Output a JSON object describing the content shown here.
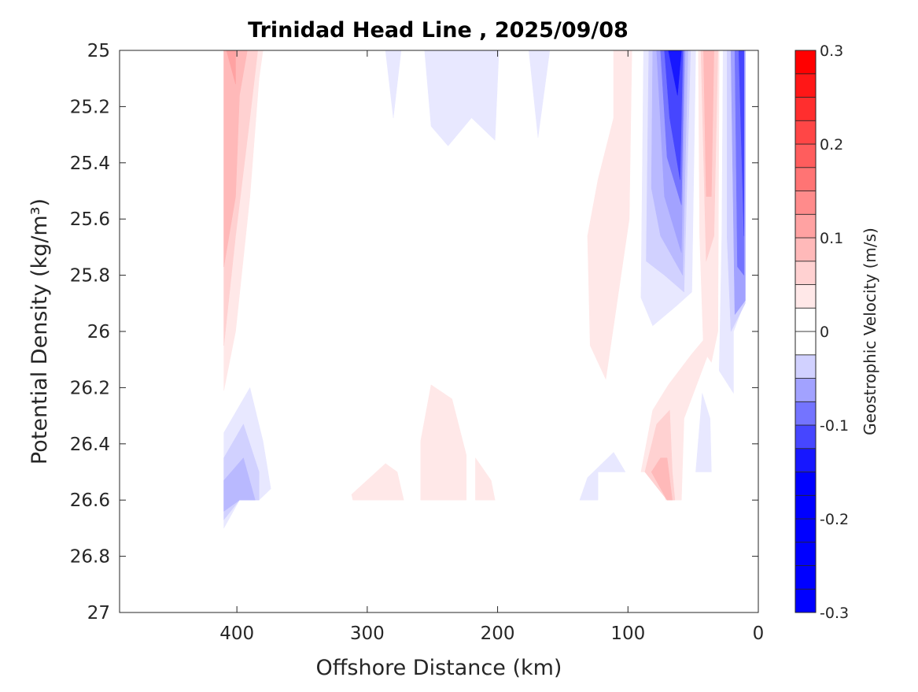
{
  "chart_data": {
    "type": "contourf",
    "title": "Trinidad Head Line , 2025/09/08",
    "xlabel": "Offshore Distance (km)",
    "ylabel": "Potential Density (kg/m³)",
    "xlim": [
      490,
      0
    ],
    "ylim": [
      27,
      25
    ],
    "xticks": [
      400,
      300,
      200,
      100,
      0
    ],
    "yticks": [
      25,
      25.2,
      25.4,
      25.6,
      25.8,
      26,
      26.2,
      26.4,
      26.6,
      26.8,
      27
    ],
    "ytick_labels": [
      "25",
      "25.2",
      "25.4",
      "25.6",
      "25.8",
      "26",
      "26.2",
      "26.4",
      "26.6",
      "26.8",
      "27"
    ],
    "colorbar": {
      "label": "Geostrophic Velocity (m/s)",
      "range": [
        -0.3,
        0.3
      ],
      "level_step": 0.025,
      "ticks": [
        0.3,
        0.2,
        0.1,
        0,
        -0.1,
        -0.2,
        -0.3
      ],
      "tick_labels": [
        "0.3",
        "0.2",
        "0.1",
        "0",
        "-0.1",
        "-0.2",
        "-0.3"
      ],
      "positive_color": "#ff0000",
      "negative_color": "#0000ff",
      "zero_color": "#ffffff"
    },
    "regions": [
      {
        "name": "red-400km-l1",
        "v": 0.025,
        "pts": [
          [
            410,
            25
          ],
          [
            380,
            25
          ],
          [
            383,
            25.1
          ],
          [
            390,
            25.52
          ],
          [
            401,
            26.0
          ],
          [
            410,
            26.21
          ]
        ]
      },
      {
        "name": "red-400km-l2",
        "v": 0.05,
        "pts": [
          [
            410,
            25
          ],
          [
            384,
            25
          ],
          [
            390,
            25.24
          ],
          [
            401,
            25.66
          ],
          [
            410,
            26.05
          ]
        ]
      },
      {
        "name": "red-400km-l3",
        "v": 0.075,
        "pts": [
          [
            410,
            25
          ],
          [
            392,
            25
          ],
          [
            398,
            25.16
          ],
          [
            401,
            25.52
          ],
          [
            410,
            25.77
          ]
        ]
      },
      {
        "name": "red-400km-l4",
        "v": 0.1,
        "pts": [
          [
            408,
            25
          ],
          [
            401,
            25
          ],
          [
            401,
            25.12
          ]
        ]
      },
      {
        "name": "blue-400km-l1",
        "v": -0.025,
        "pts": [
          [
            410,
            26.36
          ],
          [
            390,
            26.2
          ],
          [
            380,
            26.39
          ],
          [
            374,
            26.56
          ],
          [
            383,
            26.6
          ],
          [
            398,
            26.6
          ],
          [
            410,
            26.7
          ]
        ]
      },
      {
        "name": "blue-400km-l2",
        "v": -0.05,
        "pts": [
          [
            410,
            26.45
          ],
          [
            395,
            26.33
          ],
          [
            383,
            26.5
          ],
          [
            383,
            26.6
          ],
          [
            398,
            26.6
          ],
          [
            410,
            26.67
          ]
        ]
      },
      {
        "name": "blue-400km-l3",
        "v": -0.075,
        "pts": [
          [
            410,
            26.53
          ],
          [
            395,
            26.45
          ],
          [
            386,
            26.6
          ],
          [
            398,
            26.6
          ],
          [
            410,
            26.64
          ]
        ]
      },
      {
        "name": "blue-280km-l1",
        "v": -0.025,
        "pts": [
          [
            286,
            25
          ],
          [
            274,
            25
          ],
          [
            280,
            25.24
          ]
        ]
      },
      {
        "name": "blue-230km-l1",
        "v": -0.025,
        "pts": [
          [
            256,
            25
          ],
          [
            199,
            25
          ],
          [
            202,
            25.32
          ],
          [
            220,
            25.24
          ],
          [
            238,
            25.34
          ],
          [
            251,
            25.27
          ]
        ]
      },
      {
        "name": "blue-170km-l1",
        "v": -0.025,
        "pts": [
          [
            176,
            25
          ],
          [
            160,
            25
          ],
          [
            169,
            25.31
          ]
        ]
      },
      {
        "name": "red-110km-l1",
        "v": 0.025,
        "pts": [
          [
            111,
            25
          ],
          [
            97,
            25
          ],
          [
            99,
            25.6
          ],
          [
            117,
            26.17
          ],
          [
            129,
            26.05
          ],
          [
            131,
            25.66
          ],
          [
            123,
            25.46
          ],
          [
            111,
            25.24
          ]
        ]
      },
      {
        "name": "red-250km-l1",
        "v": 0.025,
        "pts": [
          [
            259,
            26.39
          ],
          [
            251,
            26.19
          ],
          [
            235,
            26.24
          ],
          [
            224,
            26.44
          ],
          [
            224,
            26.6
          ],
          [
            259,
            26.6
          ]
        ]
      },
      {
        "name": "red-210km-l1",
        "v": 0.025,
        "pts": [
          [
            217,
            26.45
          ],
          [
            205,
            26.53
          ],
          [
            202,
            26.6
          ],
          [
            217,
            26.6
          ]
        ]
      },
      {
        "name": "red-290km-l1",
        "v": 0.025,
        "pts": [
          [
            312,
            26.58
          ],
          [
            286,
            26.47
          ],
          [
            277,
            26.5
          ],
          [
            272,
            26.6
          ],
          [
            311,
            26.6
          ]
        ]
      },
      {
        "name": "blue-130km-l1",
        "v": -0.025,
        "pts": [
          [
            137,
            26.6
          ],
          [
            131,
            26.52
          ],
          [
            111,
            26.43
          ],
          [
            102,
            26.5
          ],
          [
            123,
            26.5
          ],
          [
            123,
            26.6
          ]
        ]
      },
      {
        "name": "blue-70km-l1",
        "v": -0.025,
        "pts": [
          [
            88,
            25
          ],
          [
            48,
            25
          ],
          [
            51,
            25.86
          ],
          [
            63,
            25.91
          ],
          [
            81,
            25.98
          ],
          [
            90,
            25.88
          ]
        ]
      },
      {
        "name": "blue-70km-l2",
        "v": -0.05,
        "pts": [
          [
            84,
            25
          ],
          [
            52,
            25
          ],
          [
            57,
            25.86
          ],
          [
            72,
            25.8
          ],
          [
            86,
            25.75
          ]
        ]
      },
      {
        "name": "blue-70km-l3",
        "v": -0.075,
        "pts": [
          [
            81,
            25
          ],
          [
            54,
            25
          ],
          [
            58,
            25.8
          ],
          [
            75,
            25.66
          ],
          [
            82,
            25.49
          ]
        ]
      },
      {
        "name": "blue-70km-l4",
        "v": -0.1,
        "pts": [
          [
            78,
            25
          ],
          [
            56,
            25
          ],
          [
            59,
            25.72
          ],
          [
            72,
            25.52
          ]
        ]
      },
      {
        "name": "blue-70km-l5",
        "v": -0.15,
        "pts": [
          [
            75,
            25
          ],
          [
            57,
            25
          ],
          [
            59,
            25.55
          ],
          [
            70,
            25.38
          ]
        ]
      },
      {
        "name": "blue-70km-l6",
        "v": -0.2,
        "pts": [
          [
            72,
            25
          ],
          [
            58,
            25
          ],
          [
            60,
            25.46
          ],
          [
            68,
            25.24
          ]
        ]
      },
      {
        "name": "blue-70km-l7",
        "v": -0.25,
        "pts": [
          [
            69,
            25
          ],
          [
            59,
            25
          ],
          [
            62,
            25.16
          ]
        ]
      },
      {
        "name": "red-40km-l1",
        "v": 0.025,
        "pts": [
          [
            46,
            25
          ],
          [
            30,
            25
          ],
          [
            31,
            26.0
          ],
          [
            36,
            26.11
          ],
          [
            42,
            26.07
          ],
          [
            45,
            25.66
          ]
        ]
      },
      {
        "name": "red-40km-l2",
        "v": 0.05,
        "pts": [
          [
            44,
            25
          ],
          [
            31,
            25
          ],
          [
            34,
            25.66
          ],
          [
            40,
            25.75
          ],
          [
            42,
            25.38
          ]
        ]
      },
      {
        "name": "red-40km-l3",
        "v": 0.075,
        "pts": [
          [
            42,
            25
          ],
          [
            34,
            25
          ],
          [
            36,
            25.52
          ],
          [
            40,
            25.52
          ]
        ]
      },
      {
        "name": "red-60km-lower-l1",
        "v": 0.025,
        "pts": [
          [
            90,
            26.5
          ],
          [
            81,
            26.28
          ],
          [
            69,
            26.19
          ],
          [
            51,
            26.08
          ],
          [
            42,
            26.03
          ],
          [
            36,
            26.05
          ],
          [
            57,
            26.31
          ],
          [
            59,
            26.6
          ],
          [
            71,
            26.6
          ],
          [
            78,
            26.5
          ]
        ]
      },
      {
        "name": "red-60km-lower-l2",
        "v": 0.05,
        "pts": [
          [
            87,
            26.5
          ],
          [
            78,
            26.33
          ],
          [
            68,
            26.28
          ],
          [
            66,
            26.5
          ],
          [
            64,
            26.6
          ],
          [
            70,
            26.6
          ]
        ]
      },
      {
        "name": "red-60km-lower-l3",
        "v": 0.075,
        "pts": [
          [
            82,
            26.5
          ],
          [
            75,
            26.45
          ],
          [
            70,
            26.45
          ],
          [
            66,
            26.6
          ],
          [
            70,
            26.6
          ]
        ]
      },
      {
        "name": "blue-10km-l1",
        "v": -0.025,
        "pts": [
          [
            27,
            25
          ],
          [
            10,
            25
          ],
          [
            10,
            25.89
          ],
          [
            19,
            26.0
          ],
          [
            19,
            26.22
          ],
          [
            30,
            26.14
          ],
          [
            28,
            25.66
          ]
        ]
      },
      {
        "name": "blue-10km-l2",
        "v": -0.05,
        "pts": [
          [
            24,
            25
          ],
          [
            10,
            25
          ],
          [
            10,
            25.9
          ],
          [
            21,
            26.0
          ],
          [
            24,
            25.66
          ]
        ]
      },
      {
        "name": "blue-10km-l3",
        "v": -0.1,
        "pts": [
          [
            21,
            25
          ],
          [
            10,
            25
          ],
          [
            10,
            25.89
          ],
          [
            18,
            25.94
          ]
        ]
      },
      {
        "name": "blue-10km-l4",
        "v": -0.15,
        "pts": [
          [
            18,
            25
          ],
          [
            11,
            25
          ],
          [
            11,
            25.8
          ],
          [
            16,
            25.77
          ]
        ]
      },
      {
        "name": "blue-10km-l5",
        "v": -0.2,
        "pts": [
          [
            15,
            25
          ],
          [
            11,
            25
          ],
          [
            11,
            25.66
          ]
        ]
      },
      {
        "name": "blue-25km-lower-l1",
        "v": -0.025,
        "pts": [
          [
            48,
            26.5
          ],
          [
            43,
            26.22
          ],
          [
            37,
            26.31
          ],
          [
            36,
            26.5
          ]
        ]
      }
    ]
  }
}
